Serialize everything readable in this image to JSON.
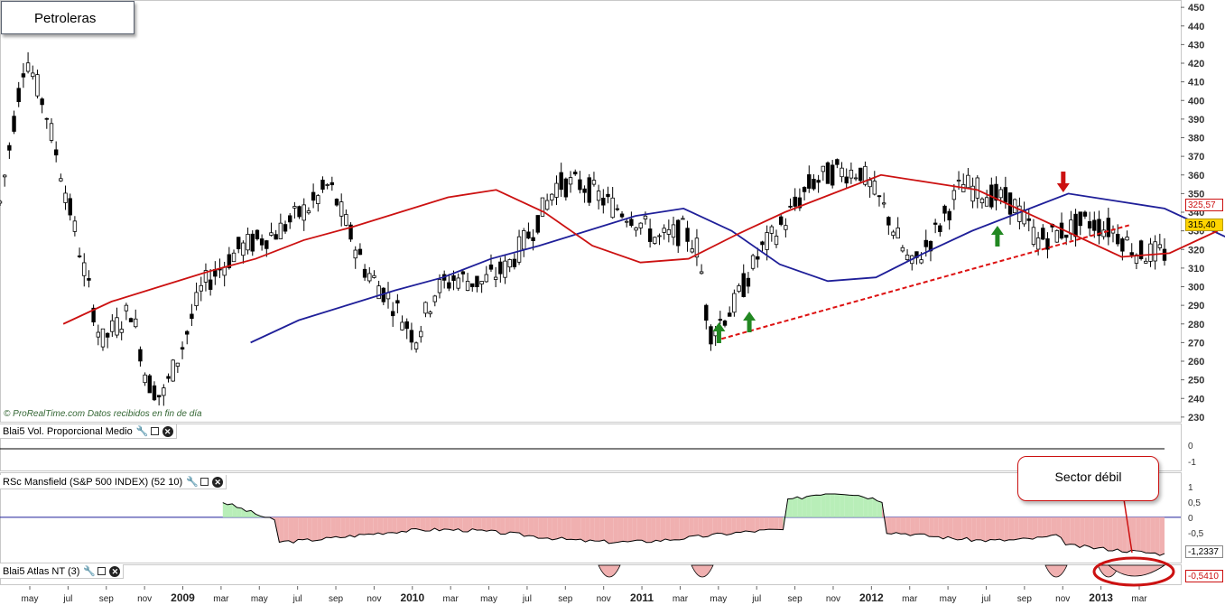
{
  "title": "Petroleras",
  "credit": {
    "site": "© ProRealTime.com",
    "note": "Datos recibidos en fin de día"
  },
  "panels": {
    "volume_label": "Blai5 Vol. Proporcional Medio",
    "mansfield_label": "RSc Mansfield (S&P 500 INDEX) (52 10)",
    "atlas_label": "Blai5 Atlas NT (3)"
  },
  "callout": "Sector débil",
  "price_labels": {
    "ma_value": "325,57",
    "hidden_value": "320",
    "last_price": "315,40",
    "rsc_value": "-1,2337",
    "atlas_value": "-0,5410"
  },
  "colors": {
    "candle_up": "#ffffff",
    "candle_down": "#000000",
    "ma_fast": "#1f1f99",
    "ma_slow": "#cc1111",
    "trendline": "#dd1111",
    "arrow_up": "#228822",
    "arrow_down": "#cc1111",
    "positive_fill": "#b8eeb8",
    "negative_fill": "#f0b0b0",
    "last_price_bg": "#ffd400"
  },
  "chart_data": {
    "type": "candlestick",
    "title": "Petroleras",
    "ylim": [
      228,
      452
    ],
    "y_ticks": [
      230,
      240,
      250,
      260,
      270,
      280,
      290,
      300,
      310,
      320,
      330,
      340,
      350,
      360,
      370,
      380,
      390,
      400,
      410,
      420,
      430,
      440,
      450
    ],
    "x_ticks": [
      "may",
      "jul",
      "sep",
      "nov",
      "2009",
      "mar",
      "may",
      "jul",
      "sep",
      "nov",
      "2010",
      "mar",
      "may",
      "jul",
      "sep",
      "nov",
      "2011",
      "mar",
      "may",
      "jul",
      "sep",
      "nov",
      "2012",
      "mar",
      "may",
      "jul",
      "sep",
      "nov",
      "2013",
      "mar"
    ],
    "price_path": [
      [
        0,
        345
      ],
      [
        0.05,
        425
      ],
      [
        0.09,
        395
      ],
      [
        0.12,
        362
      ],
      [
        0.15,
        328
      ],
      [
        0.2,
        270
      ],
      [
        0.26,
        288
      ],
      [
        0.29,
        250
      ],
      [
        0.32,
        240
      ],
      [
        0.36,
        268
      ],
      [
        0.4,
        300
      ],
      [
        0.47,
        320
      ],
      [
        0.55,
        330
      ],
      [
        0.62,
        345
      ],
      [
        0.65,
        355
      ],
      [
        0.68,
        336
      ],
      [
        0.72,
        310
      ],
      [
        0.78,
        290
      ],
      [
        0.82,
        272
      ],
      [
        0.86,
        298
      ],
      [
        0.9,
        305
      ],
      [
        0.95,
        302
      ],
      [
        1.0,
        310
      ],
      [
        1.05,
        330
      ],
      [
        1.1,
        355
      ],
      [
        1.15,
        355
      ],
      [
        1.2,
        345
      ],
      [
        1.25,
        338
      ],
      [
        1.3,
        325
      ],
      [
        1.35,
        330
      ],
      [
        1.38,
        320
      ],
      [
        1.4,
        275
      ],
      [
        1.45,
        290
      ],
      [
        1.5,
        318
      ],
      [
        1.55,
        335
      ],
      [
        1.6,
        355
      ],
      [
        1.65,
        362
      ],
      [
        1.7,
        362
      ],
      [
        1.75,
        340
      ],
      [
        1.8,
        310
      ],
      [
        1.85,
        330
      ],
      [
        1.9,
        355
      ],
      [
        1.95,
        350
      ],
      [
        2.0,
        345
      ],
      [
        2.05,
        325
      ],
      [
        2.1,
        330
      ],
      [
        2.15,
        335
      ],
      [
        2.2,
        330
      ],
      [
        2.25,
        318
      ],
      [
        2.3,
        318
      ]
    ],
    "ma_fast_path": [
      [
        0.5,
        270
      ],
      [
        0.6,
        282
      ],
      [
        0.7,
        290
      ],
      [
        0.8,
        298
      ],
      [
        0.9,
        305
      ],
      [
        1.0,
        315
      ],
      [
        1.1,
        322
      ],
      [
        1.2,
        330
      ],
      [
        1.3,
        338
      ],
      [
        1.4,
        342
      ],
      [
        1.5,
        330
      ],
      [
        1.6,
        312
      ],
      [
        1.7,
        303
      ],
      [
        1.8,
        305
      ],
      [
        1.9,
        318
      ],
      [
        2.0,
        330
      ],
      [
        2.1,
        340
      ],
      [
        2.2,
        350
      ],
      [
        2.3,
        346
      ],
      [
        2.4,
        342
      ],
      [
        2.5,
        330
      ],
      [
        2.6,
        318
      ],
      [
        2.7,
        306
      ],
      [
        2.8,
        308
      ],
      [
        2.9,
        320
      ]
    ],
    "x_index_range": [
      0,
      2.3
    ],
    "trendline": {
      "from": [
        1.425,
        272
      ],
      "to": [
        2.23,
        333
      ]
    },
    "up_arrows": [
      1.42,
      1.48,
      1.97
    ],
    "down_arrow": 2.1,
    "last_price": 315.4,
    "ma_value": 325.57,
    "rsc_mansfield": {
      "ylim": [
        -1.5,
        1.2
      ],
      "y_ticks": [
        "1",
        "0,5",
        "0",
        "-0,5",
        "-1"
      ],
      "last": -1.2337
    },
    "volume_panel": {
      "y_ticks": [
        "0",
        "-1"
      ]
    },
    "atlas_last": -0.541
  }
}
